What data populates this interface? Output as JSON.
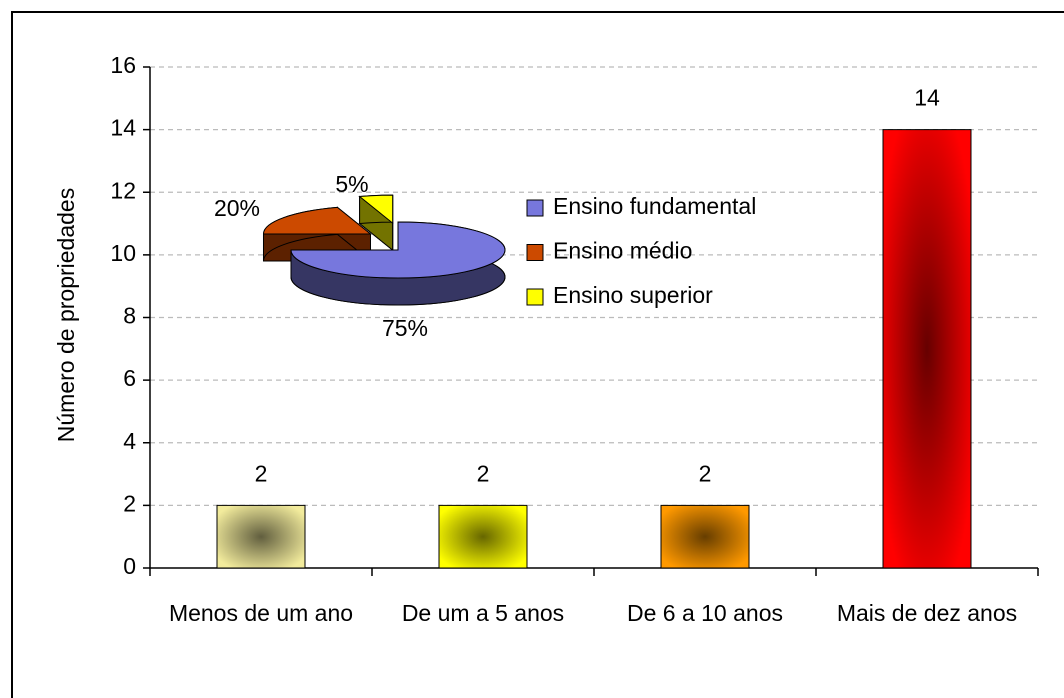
{
  "chart_data": [
    {
      "type": "bar",
      "ylabel": "Número de propriedades",
      "categories": [
        "Menos de um ano",
        "De um a 5 anos",
        "De 6 a 10 anos",
        "Mais de dez anos"
      ],
      "values": [
        2,
        2,
        2,
        14
      ],
      "colors": [
        "#f2eb9c",
        "#ffff00",
        "#ff9900",
        "#ff0000"
      ],
      "ylim": [
        0,
        16
      ],
      "yticks": [
        0,
        2,
        4,
        6,
        8,
        10,
        12,
        14,
        16
      ],
      "grid": true
    },
    {
      "type": "pie",
      "categories": [
        "Ensino fundamental",
        "Ensino médio",
        "Ensino superior"
      ],
      "values": [
        75,
        20,
        5
      ],
      "value_labels": [
        "75%",
        "20%",
        "5%"
      ],
      "colors": [
        "#7777dd",
        "#cc4a00",
        "#ffff00"
      ],
      "legend": "right"
    }
  ]
}
